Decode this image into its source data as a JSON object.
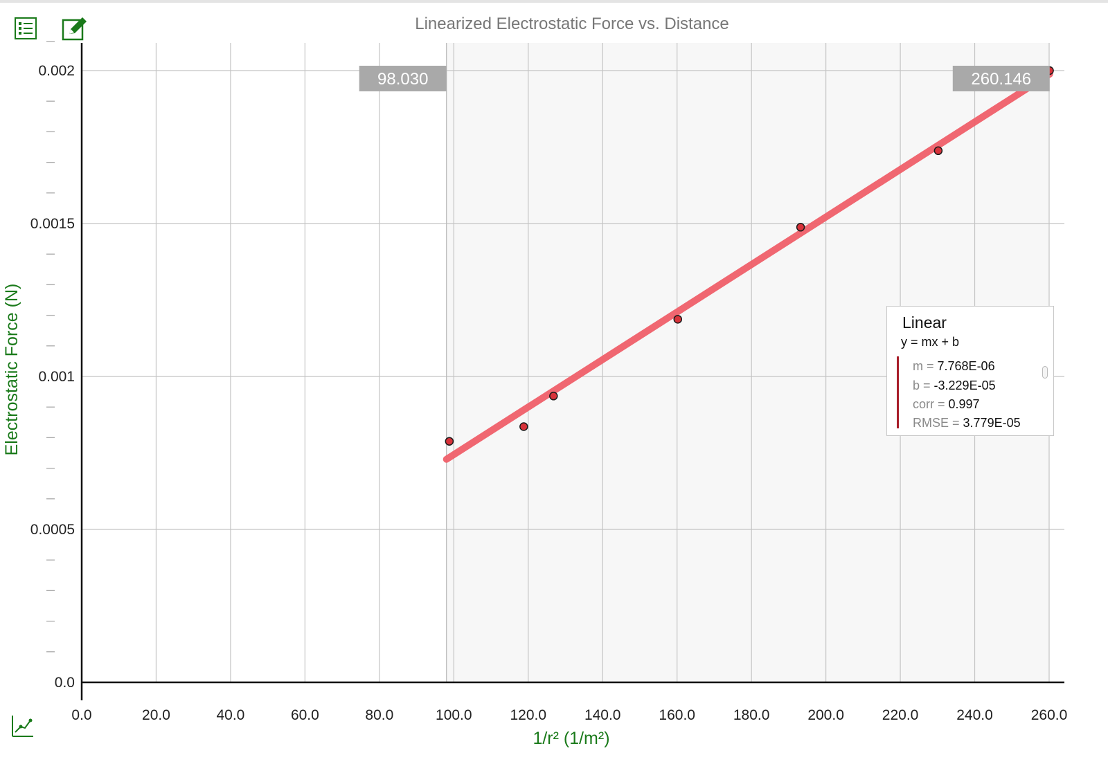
{
  "toolbar": {
    "list_icon": "data-list-icon",
    "edit_icon": "pencil-edit-icon",
    "graph_options_icon": "graph-options-icon",
    "icon_color": "#1a7a1a"
  },
  "chart_data": {
    "type": "scatter",
    "title": "Linearized Electrostatic Force vs. Distance",
    "xlabel": "1/r² (1/m²)",
    "ylabel": "Electrostatic Force (N)",
    "xlim": [
      0,
      260
    ],
    "ylim": [
      0,
      0.00205
    ],
    "x_ticks": [
      "0.0",
      "20.0",
      "40.0",
      "60.0",
      "80.0",
      "100.0",
      "120.0",
      "140.0",
      "160.0",
      "180.0",
      "200.0",
      "220.0",
      "240.0",
      "260.0"
    ],
    "y_ticks": [
      "0.0",
      "0.0005",
      "0.001",
      "0.0015",
      "0.002"
    ],
    "grid": true,
    "points": [
      {
        "x": 98.8,
        "y": 0.000788
      },
      {
        "x": 118.8,
        "y": 0.000836
      },
      {
        "x": 126.8,
        "y": 0.000936
      },
      {
        "x": 160.2,
        "y": 0.001187
      },
      {
        "x": 193.2,
        "y": 0.001488
      },
      {
        "x": 230.2,
        "y": 0.001738
      },
      {
        "x": 260.1,
        "y": 0.002
      }
    ],
    "fit": {
      "type": "Linear",
      "equation": "y = mx + b",
      "m": 7.768e-06,
      "b": -3.229e-05,
      "x_start": 98.03,
      "x_end": 260.146
    },
    "selection_range": {
      "start_label": "98.030",
      "end_label": "260.146"
    },
    "colors": {
      "point": "#d8323a",
      "fit_line": "#f0606a",
      "selection_bg": "#f7f7f7",
      "flag_bg": "#a9a9a9",
      "axis_label": "#1a7a1a"
    }
  },
  "fit_panel": {
    "title": "Linear",
    "equation": "y = mx + b",
    "rows": [
      {
        "key": "m = ",
        "value": "7.768E-06"
      },
      {
        "key": "b = ",
        "value": "-3.229E-05"
      },
      {
        "key": "corr = ",
        "value": "0.997"
      },
      {
        "key": "RMSE = ",
        "value": "3.779E-05"
      }
    ]
  }
}
